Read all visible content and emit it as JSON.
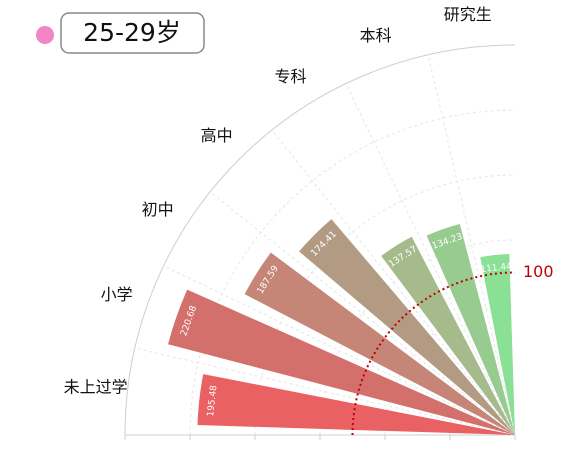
{
  "chart_data": {
    "type": "polar-bar",
    "legend": {
      "name": "25-29岁",
      "color": "#f285c4"
    },
    "categories": [
      "未上过学",
      "小学",
      "初中",
      "高中",
      "专科",
      "本科",
      "研究生"
    ],
    "values": [
      195.48,
      220.68,
      187.59,
      174.41,
      137.57,
      134.23,
      111.44
    ],
    "colors": [
      "#ea6163",
      "#d4706c",
      "#c58678",
      "#b39b83",
      "#a5bb8c",
      "#98cb8f",
      "#8ae094"
    ],
    "rlim": [
      0,
      240
    ],
    "rticks": [
      0,
      40,
      80,
      120,
      160,
      200,
      240
    ],
    "reference_line": {
      "value": 100,
      "color": "#c00000"
    },
    "grid": true
  }
}
